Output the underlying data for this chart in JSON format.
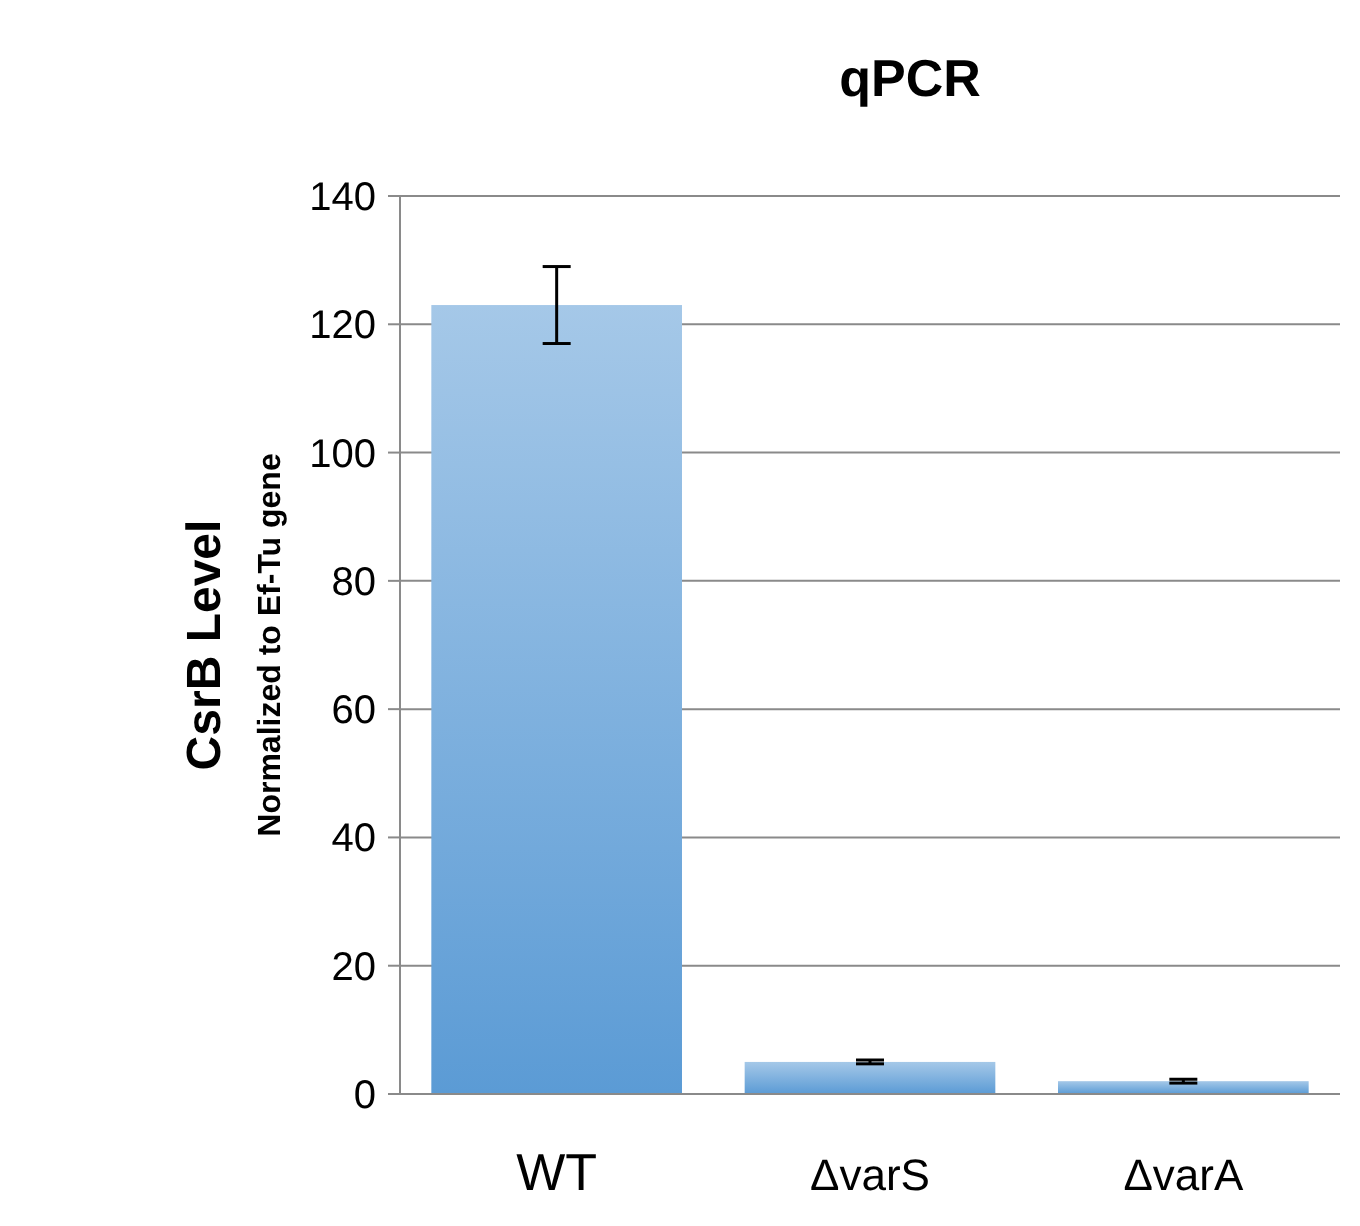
{
  "chart_data": {
    "type": "bar",
    "title": "qPCR",
    "ylabel": "CsrB Level\nNormalized to Ef-Tu gene",
    "categories": [
      "WT",
      "ΔvarS",
      "ΔvarA"
    ],
    "values": [
      123,
      5,
      2
    ],
    "errors": [
      6,
      0.3,
      0.3
    ],
    "color": "#5b9bd5",
    "ylim": [
      0,
      140
    ],
    "yticks": [
      0,
      20,
      40,
      60,
      80,
      100,
      120,
      140
    ],
    "grid": "y"
  }
}
